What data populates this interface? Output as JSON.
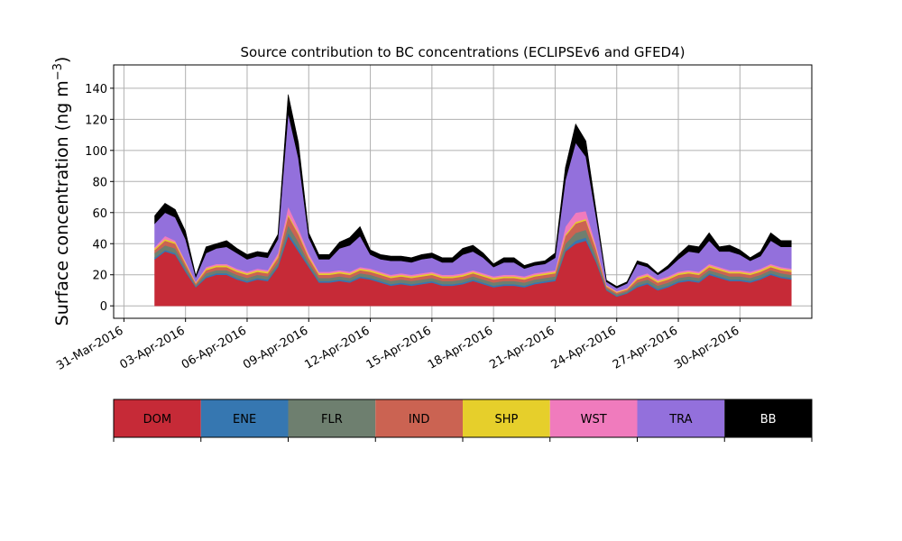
{
  "chart_data": {
    "type": "area",
    "stacked": true,
    "title": "Source contribution to BC concentrations (ECLIPSEv6 and GFED4)",
    "ylabel": "Surface concentration (ng m",
    "ylabel_unit_exponent": "−3",
    "ylabel_close": ")",
    "xlabel": "",
    "xlim": [
      "2016-03-30T12:00",
      "2016-05-03T12:00"
    ],
    "ylim": [
      -8,
      155
    ],
    "grid": true,
    "x_ticks": [
      "2016-03-31",
      "2016-04-03",
      "2016-04-06",
      "2016-04-09",
      "2016-04-12",
      "2016-04-15",
      "2016-04-18",
      "2016-04-21",
      "2016-04-24",
      "2016-04-27",
      "2016-04-30"
    ],
    "x_tick_labels": [
      "31-Mar-2016",
      "03-Apr-2016",
      "06-Apr-2016",
      "09-Apr-2016",
      "12-Apr-2016",
      "15-Apr-2016",
      "18-Apr-2016",
      "21-Apr-2016",
      "24-Apr-2016",
      "27-Apr-2016",
      "30-Apr-2016"
    ],
    "y_ticks": [
      0,
      20,
      40,
      60,
      80,
      100,
      120,
      140
    ],
    "y_tick_labels": [
      "0",
      "20",
      "40",
      "60",
      "80",
      "100",
      "120",
      "140"
    ],
    "x_start": "2016-04-01T12:00",
    "x_step_hours": 12,
    "categories": [
      "2016-04-01T12:00",
      "2016-04-02T00:00",
      "2016-04-02T12:00",
      "2016-04-03T00:00",
      "2016-04-03T12:00",
      "2016-04-04T00:00",
      "2016-04-04T12:00",
      "2016-04-05T00:00",
      "2016-04-05T12:00",
      "2016-04-06T00:00",
      "2016-04-06T12:00",
      "2016-04-07T00:00",
      "2016-04-07T12:00",
      "2016-04-08T00:00",
      "2016-04-08T12:00",
      "2016-04-09T00:00",
      "2016-04-09T12:00",
      "2016-04-10T00:00",
      "2016-04-10T12:00",
      "2016-04-11T00:00",
      "2016-04-11T12:00",
      "2016-04-12T00:00",
      "2016-04-12T12:00",
      "2016-04-13T00:00",
      "2016-04-13T12:00",
      "2016-04-14T00:00",
      "2016-04-14T12:00",
      "2016-04-15T00:00",
      "2016-04-15T12:00",
      "2016-04-16T00:00",
      "2016-04-16T12:00",
      "2016-04-17T00:00",
      "2016-04-17T12:00",
      "2016-04-18T00:00",
      "2016-04-18T12:00",
      "2016-04-19T00:00",
      "2016-04-19T12:00",
      "2016-04-20T00:00",
      "2016-04-20T12:00",
      "2016-04-21T00:00",
      "2016-04-21T12:00",
      "2016-04-22T00:00",
      "2016-04-22T12:00",
      "2016-04-23T00:00",
      "2016-04-23T12:00",
      "2016-04-24T00:00",
      "2016-04-24T12:00",
      "2016-04-25T00:00",
      "2016-04-25T12:00",
      "2016-04-26T00:00",
      "2016-04-26T12:00",
      "2016-04-27T00:00",
      "2016-04-27T12:00",
      "2016-04-28T00:00",
      "2016-04-28T12:00",
      "2016-04-29T00:00",
      "2016-04-29T12:00",
      "2016-04-30T00:00",
      "2016-04-30T12:00",
      "2016-05-01T00:00",
      "2016-05-01T12:00",
      "2016-05-02T00:00",
      "2016-05-02T12:00"
    ],
    "series": [
      {
        "name": "DOM",
        "color": "#c62a37",
        "values": [
          30,
          35,
          33,
          22,
          12,
          18,
          20,
          20,
          17,
          15,
          17,
          16,
          25,
          45,
          35,
          25,
          15,
          15,
          16,
          15,
          18,
          17,
          15,
          13,
          14,
          13,
          14,
          15,
          13,
          13,
          14,
          16,
          14,
          12,
          13,
          13,
          12,
          14,
          15,
          16,
          35,
          40,
          42,
          28,
          10,
          6,
          8,
          12,
          14,
          10,
          12,
          15,
          16,
          15,
          20,
          18,
          16,
          16,
          15,
          17,
          20,
          18,
          17
        ]
      },
      {
        "name": "ENE",
        "color": "#3677b1",
        "values": [
          1,
          1,
          1,
          1,
          0.5,
          1,
          1,
          1,
          1,
          1,
          1,
          1,
          1,
          2,
          2,
          1,
          1,
          1,
          1,
          1,
          1,
          1,
          1,
          1,
          1,
          1,
          1,
          1,
          1,
          1,
          1,
          1,
          1,
          1,
          1,
          1,
          1,
          1,
          1,
          1,
          1,
          2,
          2,
          1,
          0.5,
          0.5,
          0.5,
          1,
          1,
          1,
          1,
          1,
          1,
          1,
          1,
          1,
          1,
          1,
          1,
          1,
          1,
          1,
          1
        ]
      },
      {
        "name": "FLR",
        "color": "#6e7f6f",
        "values": [
          3,
          3,
          3,
          2,
          1,
          2,
          2,
          2,
          2,
          2,
          2,
          2,
          2,
          5,
          4,
          2,
          2,
          2,
          2,
          2,
          2,
          2,
          2,
          2,
          2,
          2,
          2,
          2,
          2,
          2,
          2,
          2,
          2,
          2,
          2,
          2,
          2,
          2,
          2,
          2,
          4,
          5,
          5,
          3,
          1,
          1,
          1,
          2,
          2,
          2,
          2,
          2,
          2,
          2,
          2,
          2,
          2,
          2,
          2,
          2,
          2,
          2,
          2
        ]
      },
      {
        "name": "IND",
        "color": "#cb6352",
        "values": [
          2,
          3,
          3,
          2,
          1,
          2,
          2,
          2,
          2,
          2,
          2,
          2,
          3,
          6,
          5,
          3,
          2,
          2,
          2,
          2,
          2,
          2,
          2,
          2,
          2,
          2,
          2,
          2,
          2,
          2,
          2,
          2,
          2,
          2,
          2,
          2,
          2,
          2,
          2,
          2,
          5,
          6,
          6,
          4,
          1,
          1,
          1,
          2,
          2,
          2,
          2,
          2,
          2,
          2,
          2,
          2,
          2,
          2,
          2,
          2,
          2,
          2,
          2
        ]
      },
      {
        "name": "SHP",
        "color": "#e6cf2b",
        "values": [
          1,
          1,
          1,
          1,
          0.5,
          1,
          1,
          1,
          1,
          1,
          1,
          1,
          1,
          1,
          1,
          1,
          1,
          1,
          1,
          1,
          1,
          1,
          1,
          1,
          1,
          1,
          1,
          1,
          1,
          1,
          1,
          1,
          1,
          1,
          1,
          1,
          1,
          1,
          1,
          1,
          1,
          1,
          1,
          1,
          0.5,
          0.5,
          0.5,
          1,
          1,
          1,
          1,
          1,
          1,
          1,
          1,
          1,
          1,
          1,
          1,
          1,
          1,
          1,
          1
        ]
      },
      {
        "name": "WST",
        "color": "#f07bbd",
        "values": [
          1,
          2,
          1,
          1,
          0.5,
          1,
          1,
          1,
          1,
          1,
          1,
          1,
          2,
          5,
          3,
          2,
          1,
          1,
          1,
          1,
          1,
          1,
          1,
          1,
          1,
          1,
          1,
          1,
          1,
          1,
          1,
          1,
          1,
          1,
          1,
          1,
          1,
          1,
          1,
          1,
          5,
          6,
          5,
          2,
          0.5,
          0.5,
          0.5,
          1,
          1,
          1,
          1,
          1,
          1,
          1,
          1,
          1,
          1,
          1,
          1,
          1,
          1,
          1,
          1
        ]
      },
      {
        "name": "TRA",
        "color": "#9370dc",
        "values": [
          15,
          15,
          15,
          14,
          3,
          9,
          10,
          11,
          10,
          8,
          8,
          8,
          9,
          60,
          45,
          10,
          8,
          8,
          14,
          17,
          20,
          9,
          8,
          9,
          8,
          8,
          9,
          9,
          8,
          8,
          12,
          12,
          10,
          6,
          8,
          8,
          5,
          5,
          5,
          8,
          30,
          45,
          35,
          18,
          2,
          2,
          3,
          8,
          4,
          3,
          5,
          8,
          12,
          12,
          15,
          10,
          12,
          10,
          7,
          8,
          15,
          13,
          14
        ]
      },
      {
        "name": "BB",
        "color": "#000000",
        "values": [
          5,
          6,
          5,
          5,
          1,
          4,
          3,
          4,
          3,
          3,
          3,
          3,
          3,
          12,
          10,
          3,
          3,
          3,
          4,
          5,
          6,
          3,
          3,
          3,
          3,
          3,
          3,
          3,
          3,
          3,
          4,
          4,
          3,
          2,
          3,
          3,
          2,
          2,
          2,
          3,
          8,
          12,
          10,
          4,
          1,
          1,
          1,
          2,
          2,
          1,
          2,
          3,
          4,
          4,
          5,
          3,
          4,
          3,
          2,
          3,
          5,
          4,
          4
        ]
      }
    ],
    "legend": {
      "placement": "bottom",
      "items": [
        {
          "label": "DOM",
          "color": "#c62a37",
          "text_color": "#000000"
        },
        {
          "label": "ENE",
          "color": "#3677b1",
          "text_color": "#000000"
        },
        {
          "label": "FLR",
          "color": "#6e7f6f",
          "text_color": "#000000"
        },
        {
          "label": "IND",
          "color": "#cb6352",
          "text_color": "#000000"
        },
        {
          "label": "SHP",
          "color": "#e6cf2b",
          "text_color": "#000000"
        },
        {
          "label": "WST",
          "color": "#f07bbd",
          "text_color": "#000000"
        },
        {
          "label": "TRA",
          "color": "#9370dc",
          "text_color": "#000000"
        },
        {
          "label": "BB",
          "color": "#000000",
          "text_color": "#ffffff"
        }
      ]
    }
  }
}
